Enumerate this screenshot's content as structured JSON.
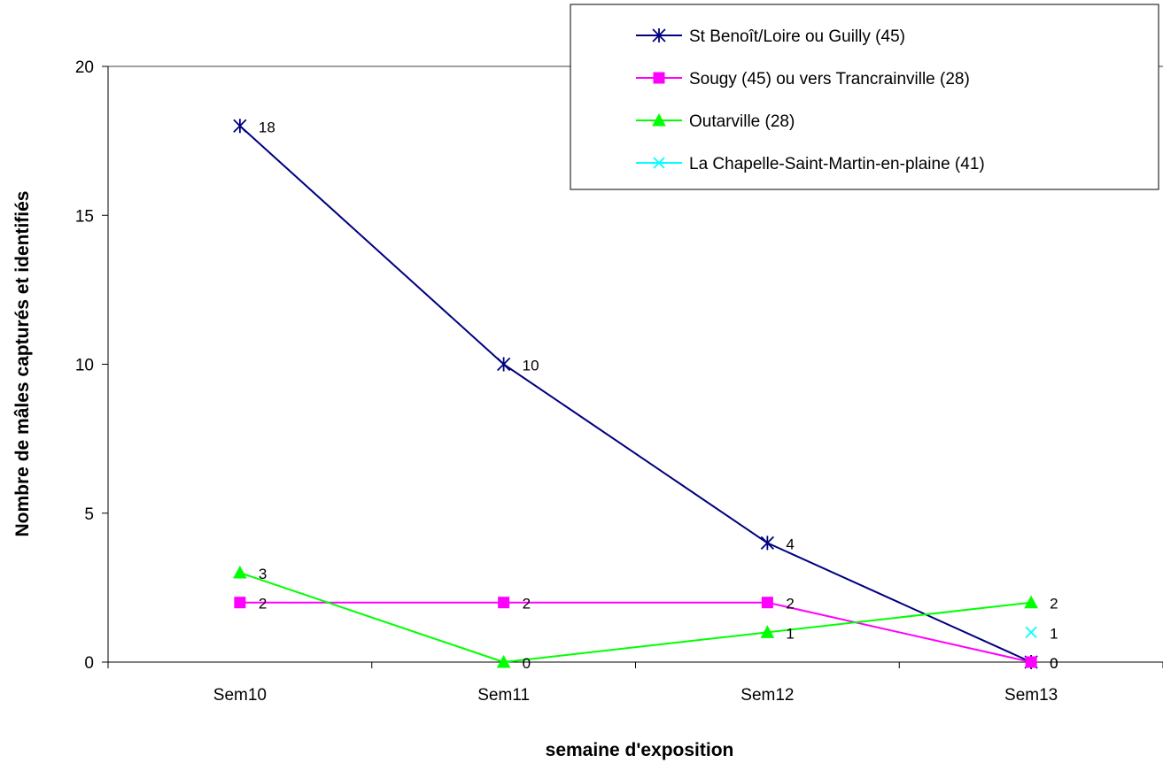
{
  "chart_data": {
    "type": "line",
    "categories": [
      "Sem10",
      "Sem11",
      "Sem12",
      "Sem13"
    ],
    "xlabel": "semaine d'exposition",
    "ylabel": "Nombre de mâles capturés et identifiés",
    "ylim": [
      0,
      20
    ],
    "yticks": [
      "0",
      "5",
      "10",
      "15",
      "20"
    ],
    "grid": false,
    "legend_position": "top-right",
    "series": [
      {
        "name": "St Benoît/Loire ou Guilly (45)",
        "color": "#000080",
        "marker": "asterisk",
        "values": [
          18,
          10,
          4,
          0
        ],
        "labels": [
          "18",
          "10",
          "4",
          "0"
        ]
      },
      {
        "name": "Sougy (45) ou vers Trancrainville (28)",
        "color": "#ff00ff",
        "marker": "square",
        "values": [
          2,
          2,
          2,
          0
        ],
        "labels": [
          "2",
          "2",
          "2",
          "0"
        ]
      },
      {
        "name": "Outarville (28)",
        "color": "#00ff00",
        "marker": "triangle",
        "values": [
          3,
          0,
          1,
          2
        ],
        "labels": [
          "3",
          "0",
          "1",
          "2"
        ]
      },
      {
        "name": "La Chapelle-Saint-Martin-en-plaine  (41)",
        "color": "#00ffff",
        "marker": "x",
        "values": [
          null,
          null,
          null,
          1
        ],
        "labels": [
          "",
          "",
          "",
          "1"
        ]
      }
    ]
  }
}
